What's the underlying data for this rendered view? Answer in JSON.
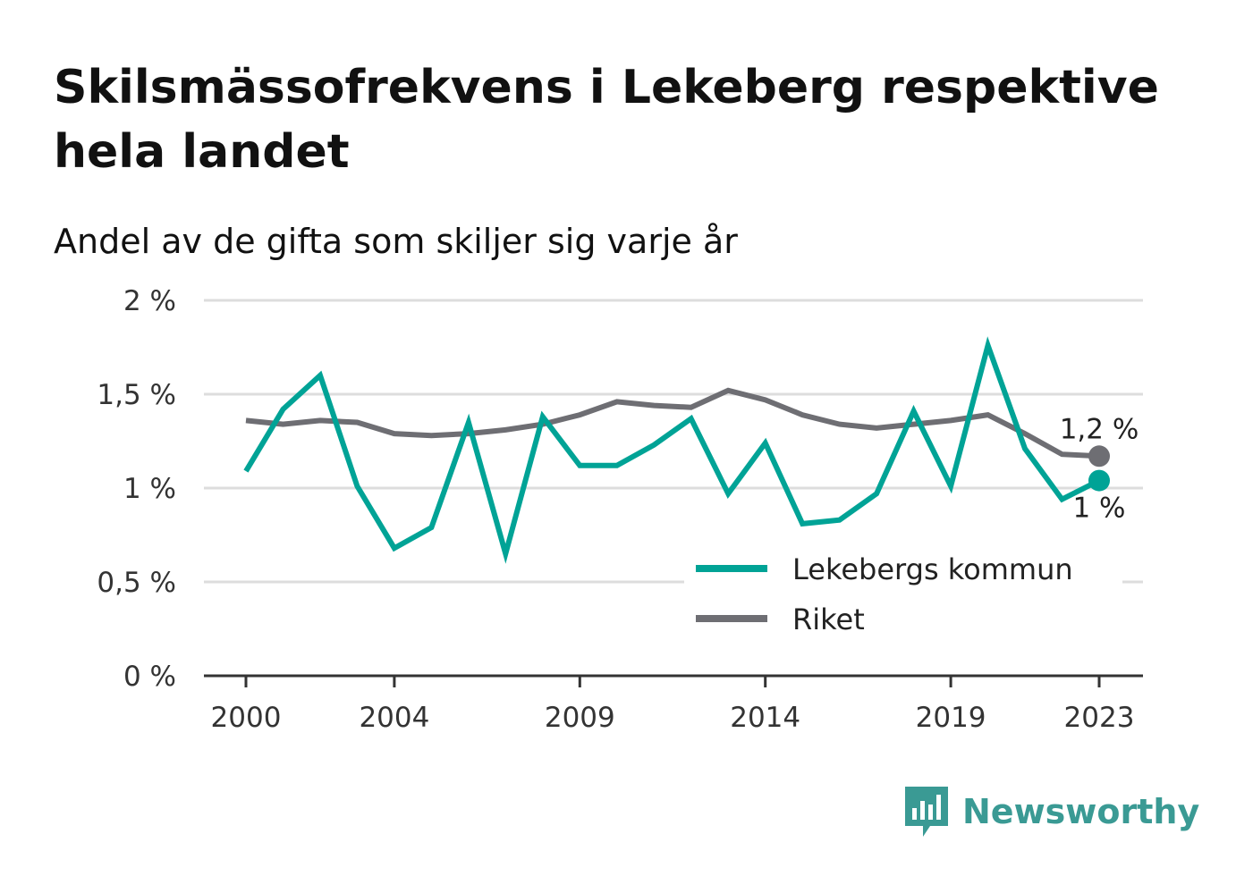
{
  "title": "Skilsmässofrekvens i Lekeberg respektive hela landet",
  "subtitle": "Andel av de gifta som skiljer sig varje år",
  "brand": "Newsworthy",
  "colors": {
    "lekeberg": "#00a396",
    "riket": "#6e6e73",
    "grid": "#dddddd",
    "axis": "#333333"
  },
  "chart_data": {
    "type": "line",
    "x": [
      2000,
      2001,
      2002,
      2003,
      2004,
      2005,
      2006,
      2007,
      2008,
      2009,
      2010,
      2011,
      2012,
      2013,
      2014,
      2015,
      2016,
      2017,
      2018,
      2019,
      2020,
      2021,
      2022,
      2023
    ],
    "series": [
      {
        "name": "Lekebergs kommun",
        "color": "#00a396",
        "values": [
          1.09,
          1.42,
          1.6,
          1.01,
          0.68,
          0.79,
          1.35,
          0.65,
          1.38,
          1.12,
          1.12,
          1.23,
          1.37,
          0.97,
          1.24,
          0.81,
          0.83,
          0.97,
          1.41,
          1.01,
          1.76,
          1.21,
          0.94,
          1.04
        ],
        "end_label": "1 %"
      },
      {
        "name": "Riket",
        "color": "#6e6e73",
        "values": [
          1.36,
          1.34,
          1.36,
          1.35,
          1.29,
          1.28,
          1.29,
          1.31,
          1.34,
          1.39,
          1.46,
          1.44,
          1.43,
          1.52,
          1.47,
          1.39,
          1.34,
          1.32,
          1.34,
          1.36,
          1.39,
          1.29,
          1.18,
          1.17
        ],
        "end_label": "1,2 %"
      }
    ],
    "xticks": [
      2000,
      2004,
      2009,
      2014,
      2019,
      2023
    ],
    "xtick_labels": [
      "2000",
      "2004",
      "2009",
      "2014",
      "2019",
      "2023"
    ],
    "yticks": [
      0,
      0.5,
      1,
      1.5,
      2
    ],
    "ytick_labels": [
      "0 %",
      "0,5 %",
      "1 %",
      "1,5 %",
      "2 %"
    ],
    "ylim": [
      0,
      2
    ],
    "xlim": [
      2000,
      2023
    ],
    "grid": true,
    "legend_position": "bottom-right"
  }
}
